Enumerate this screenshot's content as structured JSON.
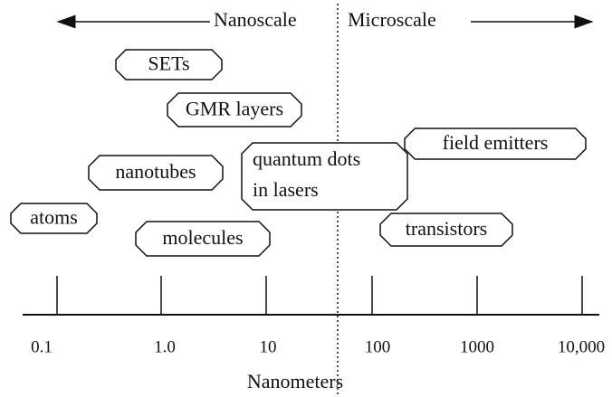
{
  "header": {
    "left": "Nanoscale",
    "right": "Microscale"
  },
  "items": [
    "SETs",
    "GMR layers",
    "field emitters",
    "nanotubes",
    [
      "quantum dots",
      "in lasers"
    ],
    "atoms",
    "molecules",
    "transistors"
  ],
  "axis": {
    "ticks": [
      "0.1",
      "1.0",
      "10",
      "100",
      "1000",
      "10,000"
    ],
    "label": "Nanometers"
  }
}
